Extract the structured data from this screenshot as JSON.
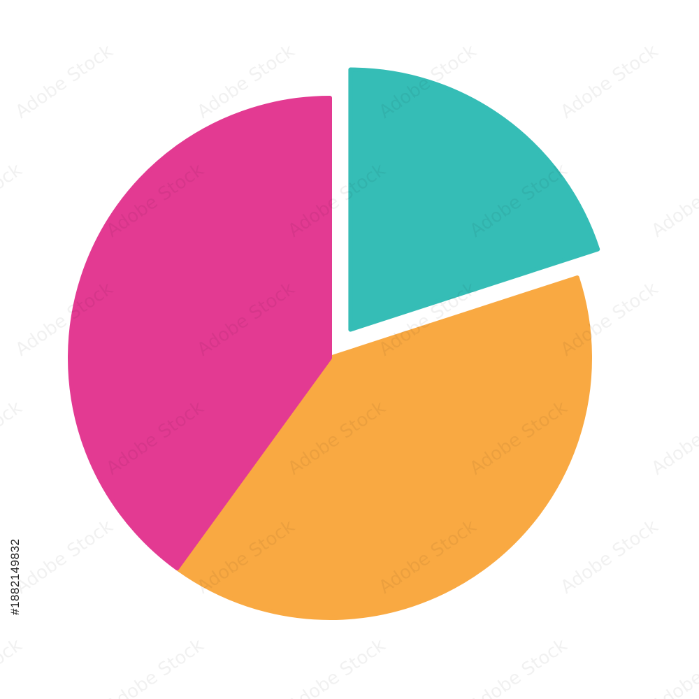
{
  "chart_data": {
    "type": "pie",
    "title": "",
    "categories": [
      "",
      "",
      ""
    ],
    "values": [
      20,
      40,
      40
    ],
    "colors": [
      "#35BDB6",
      "#F9A942",
      "#E33A92"
    ],
    "exploded": [
      true,
      false,
      false
    ],
    "start": "top",
    "direction": "clockwise",
    "legend": "none",
    "data_labels": "none"
  },
  "watermark": {
    "text": "Adobe Stock",
    "id": "#1882149832"
  }
}
